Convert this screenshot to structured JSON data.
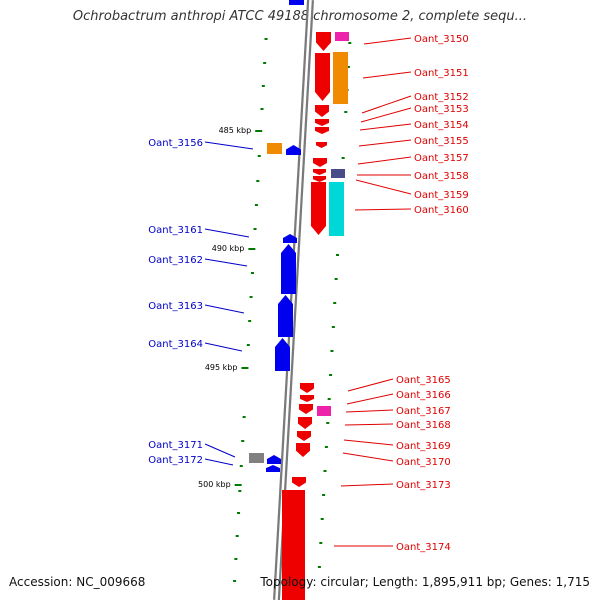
{
  "title": "Ochrobactrum anthropi ATCC 49188 chromosome 2, complete sequ...",
  "footer": {
    "accession": "Accession: NC_009668",
    "topology": "Topology: circular; Length: 1,895,911 bp; Genes: 1,715"
  },
  "colors": {
    "forward": "#ee0000",
    "reverse": "#0000ee",
    "label_forward": "#e00000",
    "label_reverse": "#0000c8",
    "tick": "#007a00",
    "backbone": "#999999",
    "orange": "#f08a00",
    "pink": "#ee22aa",
    "cyan": "#00d8d8",
    "navy": "#484c88",
    "gray": "#808080"
  },
  "scale_labels": [
    "485 kbp",
    "490 kbp",
    "495 kbp",
    "500 kbp"
  ],
  "genes_forward": [
    "Oant_3150",
    "Oant_3151",
    "Oant_3152",
    "Oant_3153",
    "Oant_3154",
    "Oant_3155",
    "Oant_3157",
    "Oant_3158",
    "Oant_3159",
    "Oant_3160",
    "Oant_3165",
    "Oant_3166",
    "Oant_3167",
    "Oant_3168",
    "Oant_3169",
    "Oant_3170",
    "Oant_3173",
    "Oant_3174"
  ],
  "genes_reverse": [
    "Oant_3156",
    "Oant_3161",
    "Oant_3162",
    "Oant_3163",
    "Oant_3164",
    "Oant_3171",
    "Oant_3172"
  ]
}
